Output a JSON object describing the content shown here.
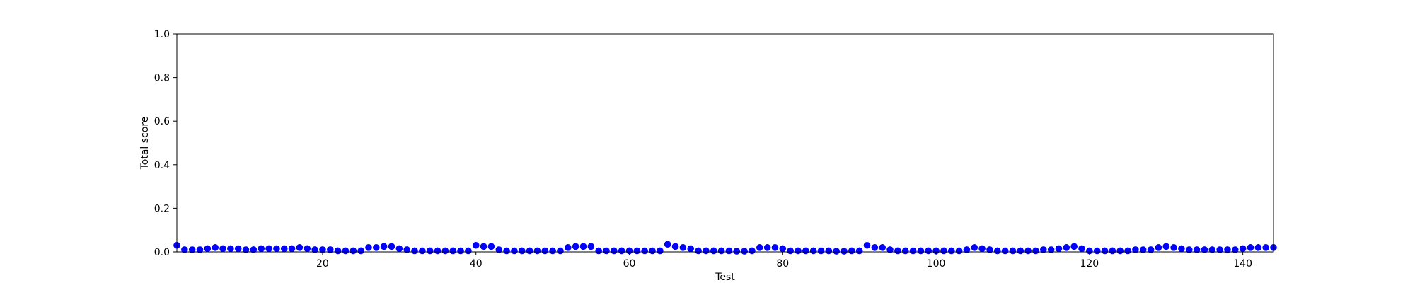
{
  "chart_data": {
    "type": "scatter",
    "title": "",
    "xlabel": "Test",
    "ylabel": "Total score",
    "xlim": [
      1,
      144
    ],
    "ylim": [
      0,
      1.0
    ],
    "grid": false,
    "legend": "none",
    "x_ticks": [
      20,
      40,
      60,
      80,
      100,
      120,
      140
    ],
    "y_ticks": [
      0.0,
      0.2,
      0.4,
      0.6,
      0.8,
      1.0
    ],
    "y_tick_labels": [
      "0.0",
      "0.2",
      "0.4",
      "0.6",
      "0.8",
      "1.0"
    ],
    "marker_color": "#0000ff",
    "series": [
      {
        "x": [
          1,
          2,
          3,
          4,
          5,
          6,
          7,
          8,
          9,
          10,
          11,
          12,
          13,
          14,
          15,
          16,
          17,
          18,
          19,
          20,
          21,
          22,
          23,
          24,
          25,
          26,
          27,
          28,
          29,
          30,
          31,
          32,
          33,
          34,
          35,
          36,
          37,
          38,
          39,
          40,
          41,
          42,
          43,
          44,
          45,
          46,
          47,
          48,
          49,
          50,
          51,
          52,
          53,
          54,
          55,
          56,
          57,
          58,
          59,
          60,
          61,
          62,
          63,
          64,
          65,
          66,
          67,
          68,
          69,
          70,
          71,
          72,
          73,
          74,
          75,
          76,
          77,
          78,
          79,
          80,
          81,
          82,
          83,
          84,
          85,
          86,
          87,
          88,
          89,
          90,
          91,
          92,
          93,
          94,
          95,
          96,
          97,
          98,
          99,
          100,
          101,
          102,
          103,
          104,
          105,
          106,
          107,
          108,
          109,
          110,
          111,
          112,
          113,
          114,
          115,
          116,
          117,
          118,
          119,
          120,
          121,
          122,
          123,
          124,
          125,
          126,
          127,
          128,
          129,
          130,
          131,
          132,
          133,
          134,
          135,
          136,
          137,
          138,
          139,
          140,
          141,
          142,
          143,
          144
        ],
        "y": [
          0.03,
          0.01,
          0.01,
          0.01,
          0.015,
          0.02,
          0.015,
          0.015,
          0.015,
          0.01,
          0.01,
          0.015,
          0.015,
          0.015,
          0.015,
          0.015,
          0.02,
          0.015,
          0.01,
          0.01,
          0.01,
          0.005,
          0.005,
          0.005,
          0.005,
          0.02,
          0.02,
          0.025,
          0.025,
          0.015,
          0.01,
          0.005,
          0.005,
          0.005,
          0.005,
          0.005,
          0.005,
          0.005,
          0.005,
          0.03,
          0.025,
          0.025,
          0.01,
          0.005,
          0.005,
          0.005,
          0.005,
          0.005,
          0.005,
          0.005,
          0.005,
          0.02,
          0.025,
          0.025,
          0.025,
          0.005,
          0.005,
          0.005,
          0.005,
          0.005,
          0.005,
          0.005,
          0.005,
          0.005,
          0.035,
          0.025,
          0.02,
          0.015,
          0.005,
          0.005,
          0.005,
          0.005,
          0.005,
          0.003,
          0.003,
          0.005,
          0.02,
          0.02,
          0.02,
          0.015,
          0.005,
          0.005,
          0.005,
          0.005,
          0.005,
          0.005,
          0.003,
          0.003,
          0.005,
          0.005,
          0.03,
          0.02,
          0.02,
          0.01,
          0.005,
          0.005,
          0.005,
          0.005,
          0.005,
          0.005,
          0.005,
          0.005,
          0.005,
          0.01,
          0.02,
          0.015,
          0.01,
          0.005,
          0.005,
          0.005,
          0.005,
          0.005,
          0.005,
          0.01,
          0.01,
          0.015,
          0.02,
          0.025,
          0.015,
          0.005,
          0.005,
          0.005,
          0.005,
          0.005,
          0.005,
          0.01,
          0.01,
          0.01,
          0.02,
          0.025,
          0.02,
          0.015,
          0.01,
          0.01,
          0.01,
          0.01,
          0.01,
          0.01,
          0.01,
          0.015,
          0.02,
          0.02,
          0.02,
          0.02
        ]
      }
    ]
  }
}
